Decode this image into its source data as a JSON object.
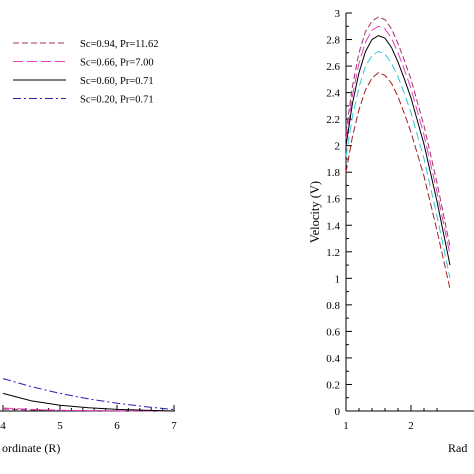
{
  "chart_data": [
    {
      "type": "line",
      "title": "",
      "xlabel": "ordinate (R)",
      "ylabel": "",
      "xlim": [
        3.8,
        7
      ],
      "ylim": [
        0,
        0.6
      ],
      "x_ticks": [
        "4",
        "5",
        "6",
        "7"
      ],
      "legend_position": "top",
      "series": [
        {
          "name": "Sc=0.94,  Pr=11.62",
          "color": "#a0306a",
          "dash": "6,3",
          "x": [
            3.8,
            4.0,
            4.5,
            5.0,
            5.5,
            6.0,
            6.5,
            7.0
          ],
          "y": [
            0.02,
            0.015,
            0.008,
            0.004,
            0.002,
            0.001,
            0.0005,
            0.0
          ]
        },
        {
          "name": "Sc=0.66,  Pr=7.00",
          "color": "#e040c0",
          "dash": "10,4",
          "x": [
            3.8,
            4.0,
            4.5,
            5.0,
            5.5,
            6.0,
            6.5,
            7.0
          ],
          "y": [
            0.03,
            0.022,
            0.012,
            0.006,
            0.003,
            0.0015,
            0.0007,
            0.0
          ]
        },
        {
          "name": "Sc=0.60,  Pr=0.71",
          "color": "#000000",
          "dash": "",
          "x": [
            3.8,
            4.0,
            4.5,
            5.0,
            5.5,
            6.0,
            6.5,
            7.0
          ],
          "y": [
            0.16,
            0.13,
            0.075,
            0.043,
            0.024,
            0.012,
            0.006,
            0.0
          ]
        },
        {
          "name": "Sc=0.20,  Pr=0.71",
          "color": "#2020b0",
          "dash": "8,3,2,3",
          "x": [
            3.8,
            4.0,
            4.5,
            5.0,
            5.5,
            6.0,
            6.5,
            7.0
          ],
          "y": [
            0.27,
            0.24,
            0.18,
            0.13,
            0.09,
            0.058,
            0.032,
            0.01
          ]
        }
      ]
    },
    {
      "type": "line",
      "title": "",
      "xlabel": "Rad",
      "ylabel": "Velocity  (V)",
      "xlim": [
        1,
        2.6
      ],
      "ylim": [
        0,
        3
      ],
      "x_ticks": [
        "1",
        "2"
      ],
      "y_ticks": [
        "0",
        "0.2",
        "0.4",
        "0.6",
        "0.8",
        "1",
        "1.2",
        "1.4",
        "1.6",
        "1.8",
        "2",
        "2.2",
        "2.4",
        "2.6",
        "2.8",
        "3"
      ],
      "series": [
        {
          "name": "Sc=0.94,  Pr=11.62",
          "color": "#a0306a",
          "dash": "6,3",
          "x": [
            1.0,
            1.1,
            1.2,
            1.3,
            1.4,
            1.5,
            1.6,
            1.7,
            1.8,
            1.9,
            2.0,
            2.2,
            2.4,
            2.6
          ],
          "y": [
            2.1,
            2.45,
            2.7,
            2.86,
            2.94,
            2.97,
            2.95,
            2.88,
            2.77,
            2.64,
            2.5,
            2.15,
            1.72,
            1.24
          ]
        },
        {
          "name": "Sc=0.66,  Pr=7.00",
          "color": "#e040c0",
          "dash": "10,4",
          "x": [
            1.0,
            1.1,
            1.2,
            1.3,
            1.4,
            1.5,
            1.6,
            1.7,
            1.8,
            1.9,
            2.0,
            2.2,
            2.4,
            2.6
          ],
          "y": [
            2.05,
            2.38,
            2.62,
            2.78,
            2.87,
            2.9,
            2.88,
            2.81,
            2.7,
            2.57,
            2.43,
            2.08,
            1.65,
            1.18
          ]
        },
        {
          "name": "Sc=0.60,  Pr=0.71",
          "color": "#000000",
          "dash": "",
          "x": [
            1.0,
            1.1,
            1.2,
            1.3,
            1.4,
            1.5,
            1.6,
            1.7,
            1.8,
            1.9,
            2.0,
            2.2,
            2.4,
            2.6
          ],
          "y": [
            2.0,
            2.32,
            2.55,
            2.71,
            2.8,
            2.83,
            2.81,
            2.74,
            2.63,
            2.5,
            2.36,
            2.01,
            1.58,
            1.1
          ]
        },
        {
          "name": "Sc=0.20,  Pr=0.71",
          "color": "#30c8d8",
          "dash": "8,4",
          "x": [
            1.0,
            1.1,
            1.2,
            1.3,
            1.4,
            1.5,
            1.6,
            1.7,
            1.8,
            1.9,
            2.0,
            2.2,
            2.4,
            2.6
          ],
          "y": [
            1.92,
            2.22,
            2.44,
            2.6,
            2.68,
            2.71,
            2.69,
            2.62,
            2.52,
            2.39,
            2.25,
            1.9,
            1.47,
            1.0
          ]
        },
        {
          "name": "",
          "color": "#a02020",
          "dash": "7,3",
          "x": [
            1.0,
            1.1,
            1.2,
            1.3,
            1.4,
            1.5,
            1.6,
            1.7,
            1.8,
            1.9,
            2.0,
            2.2,
            2.4,
            2.6
          ],
          "y": [
            1.8,
            2.07,
            2.27,
            2.42,
            2.51,
            2.55,
            2.53,
            2.47,
            2.37,
            2.24,
            2.1,
            1.77,
            1.36,
            0.92
          ]
        }
      ]
    }
  ]
}
